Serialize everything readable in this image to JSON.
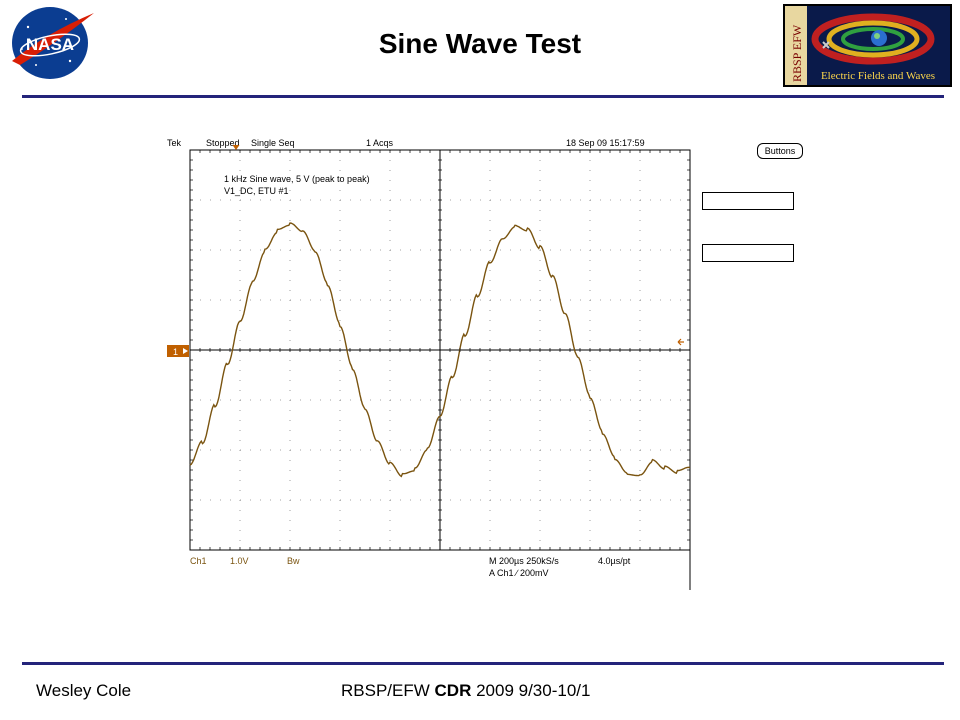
{
  "slide": {
    "title": "Sine Wave Test",
    "logo_left": "NASA",
    "logo_right_vertical": "RBSP EFW",
    "logo_right_caption": "Electric Fields and Waves",
    "footer_left": "Wesley Cole",
    "footer_right_prefix": "RBSP/EFW ",
    "footer_right_bold": "CDR",
    "footer_right_suffix": " 2009 9/30-10/1",
    "rule_color": "#23237a"
  },
  "scope": {
    "brand": "Tek",
    "status": "Stopped",
    "mode": "Single Seq",
    "acqs": "1 Acqs",
    "timestamp": "18 Sep 09 15:17:59",
    "note_line1": "1 kHz Sine wave, 5 V (peak to peak)",
    "note_line2": "V1_DC, ETU #1",
    "ch_marker": "1",
    "bottom_ch": "Ch1",
    "bottom_scale": "1.0V",
    "bottom_bw": "Bw",
    "timebase": "M 200µs 250kS/s",
    "per_point": "4.0µs/pt",
    "trigger": "A  Ch1  ∕  200mV",
    "buttons_label": "Buttons",
    "trace_color": "#7a5410",
    "marker_color": "#c06000"
  },
  "chart_data": {
    "type": "line",
    "title": "",
    "xlabel": "",
    "ylabel": "",
    "x_unit": "µs",
    "y_unit": "V",
    "xlim": [
      -1000,
      1000
    ],
    "ylim": [
      -4,
      4
    ],
    "x_div": 200,
    "y_div": 1.0,
    "grid": true,
    "series": [
      {
        "x": [
          -1000,
          -950,
          -900,
          -850,
          -800,
          -750,
          -700,
          -650,
          -600,
          -550,
          -500,
          -450,
          -400,
          -350,
          -300,
          -250,
          -200,
          -150,
          -100,
          -50,
          0,
          50,
          100,
          150,
          200,
          250,
          300,
          350,
          400,
          450,
          500,
          550,
          600,
          650,
          700,
          750,
          800,
          850,
          900,
          950,
          1000
        ],
        "values": [
          -2.3,
          -1.85,
          -1.1,
          -0.25,
          0.6,
          1.38,
          2.0,
          2.38,
          2.5,
          2.35,
          1.95,
          1.3,
          0.5,
          -0.35,
          -1.15,
          -1.8,
          -2.25,
          -2.5,
          -2.4,
          -2.0,
          -1.35,
          -0.55,
          0.3,
          1.1,
          1.78,
          2.25,
          2.5,
          2.42,
          2.05,
          1.45,
          0.7,
          -0.15,
          -0.95,
          -1.65,
          -2.15,
          -2.45,
          -2.48,
          -2.2,
          -2.35,
          -2.45,
          -2.35
        ]
      }
    ]
  }
}
